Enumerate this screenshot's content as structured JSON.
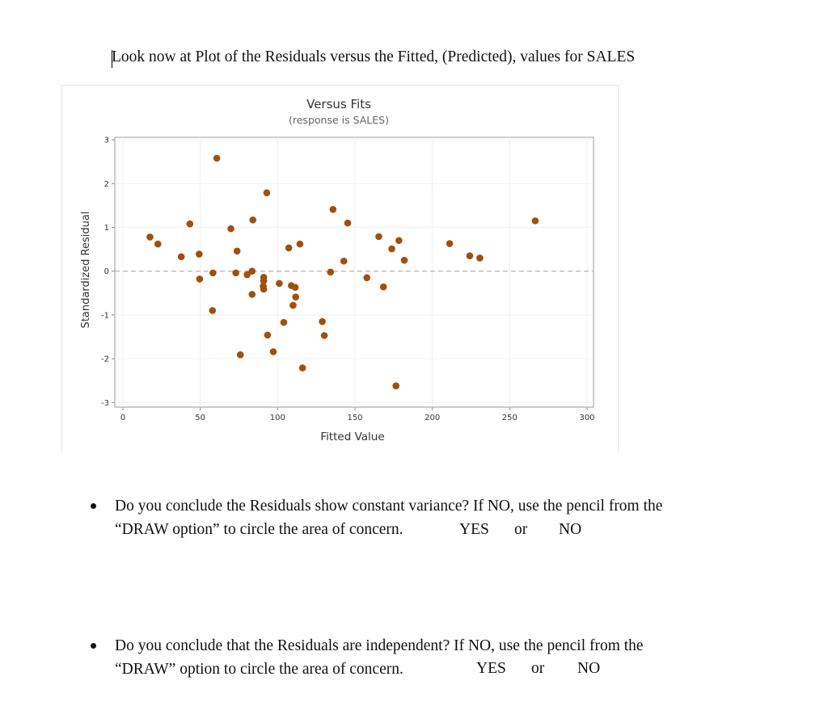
{
  "document": {
    "heading": "Look now at Plot of the Residuals versus the Fitted, (Predicted), values for SALES",
    "questions": [
      {
        "line1": "Do you conclude the Residuals show constant variance? If NO, use the pencil from the",
        "line2": "“DRAW option” to circle the area of concern.",
        "yes": "YES",
        "or": "or",
        "no": "NO"
      },
      {
        "line1": "Do you conclude that the Residuals are independent? If NO, use the pencil from the",
        "line2": "“DRAW” option to circle the area of concern.",
        "yes": "YES",
        "or": "or",
        "no": "NO"
      }
    ]
  },
  "chart_data": {
    "type": "scatter",
    "title": "Versus Fits",
    "subtitle": "(response is SALES)",
    "xlabel": "Fitted Value",
    "ylabel": "Standardized Residual",
    "xlim": [
      0,
      300
    ],
    "ylim": [
      -3,
      3
    ],
    "xticks": [
      "0",
      "50",
      "100",
      "150",
      "200",
      "250",
      "300"
    ],
    "yticks": [
      "3",
      "2",
      "1",
      "0",
      "-1",
      "-2",
      "-3"
    ],
    "grid": true,
    "reference_line": {
      "y": 0,
      "style": "dashed"
    },
    "marker_color": "#a0500e",
    "points": [
      [
        60.7,
        2.58
      ],
      [
        93.0,
        1.79
      ],
      [
        17.5,
        0.78
      ],
      [
        22.6,
        0.62
      ],
      [
        43.3,
        1.08
      ],
      [
        69.8,
        0.97
      ],
      [
        84.0,
        1.17
      ],
      [
        135.8,
        1.41
      ],
      [
        145.3,
        1.1
      ],
      [
        37.7,
        0.33
      ],
      [
        49.3,
        0.39
      ],
      [
        73.8,
        0.46
      ],
      [
        107.2,
        0.53
      ],
      [
        114.4,
        0.62
      ],
      [
        142.8,
        0.23
      ],
      [
        49.6,
        -0.18
      ],
      [
        58.2,
        -0.04
      ],
      [
        73.0,
        -0.04
      ],
      [
        80.3,
        -0.08
      ],
      [
        83.5,
        0.0
      ],
      [
        91.0,
        -0.14
      ],
      [
        91.0,
        -0.22
      ],
      [
        90.7,
        -0.34
      ],
      [
        91.0,
        -0.41
      ],
      [
        83.5,
        -0.53
      ],
      [
        101.1,
        -0.28
      ],
      [
        108.9,
        -0.33
      ],
      [
        111.4,
        -0.37
      ],
      [
        111.7,
        -0.59
      ],
      [
        110.0,
        -0.78
      ],
      [
        134.2,
        -0.02
      ],
      [
        157.7,
        -0.15
      ],
      [
        57.9,
        -0.9
      ],
      [
        104.0,
        -1.17
      ],
      [
        128.9,
        -1.15
      ],
      [
        93.5,
        -1.46
      ],
      [
        130.2,
        -1.47
      ],
      [
        75.9,
        -1.91
      ],
      [
        97.2,
        -1.84
      ],
      [
        116.1,
        -2.21
      ],
      [
        165.4,
        0.79
      ],
      [
        178.4,
        0.7
      ],
      [
        173.8,
        0.51
      ],
      [
        181.9,
        0.25
      ],
      [
        168.4,
        -0.36
      ],
      [
        211.2,
        0.63
      ],
      [
        224.2,
        0.35
      ],
      [
        230.7,
        0.3
      ],
      [
        266.5,
        1.15
      ],
      [
        176.5,
        -2.62
      ]
    ]
  }
}
